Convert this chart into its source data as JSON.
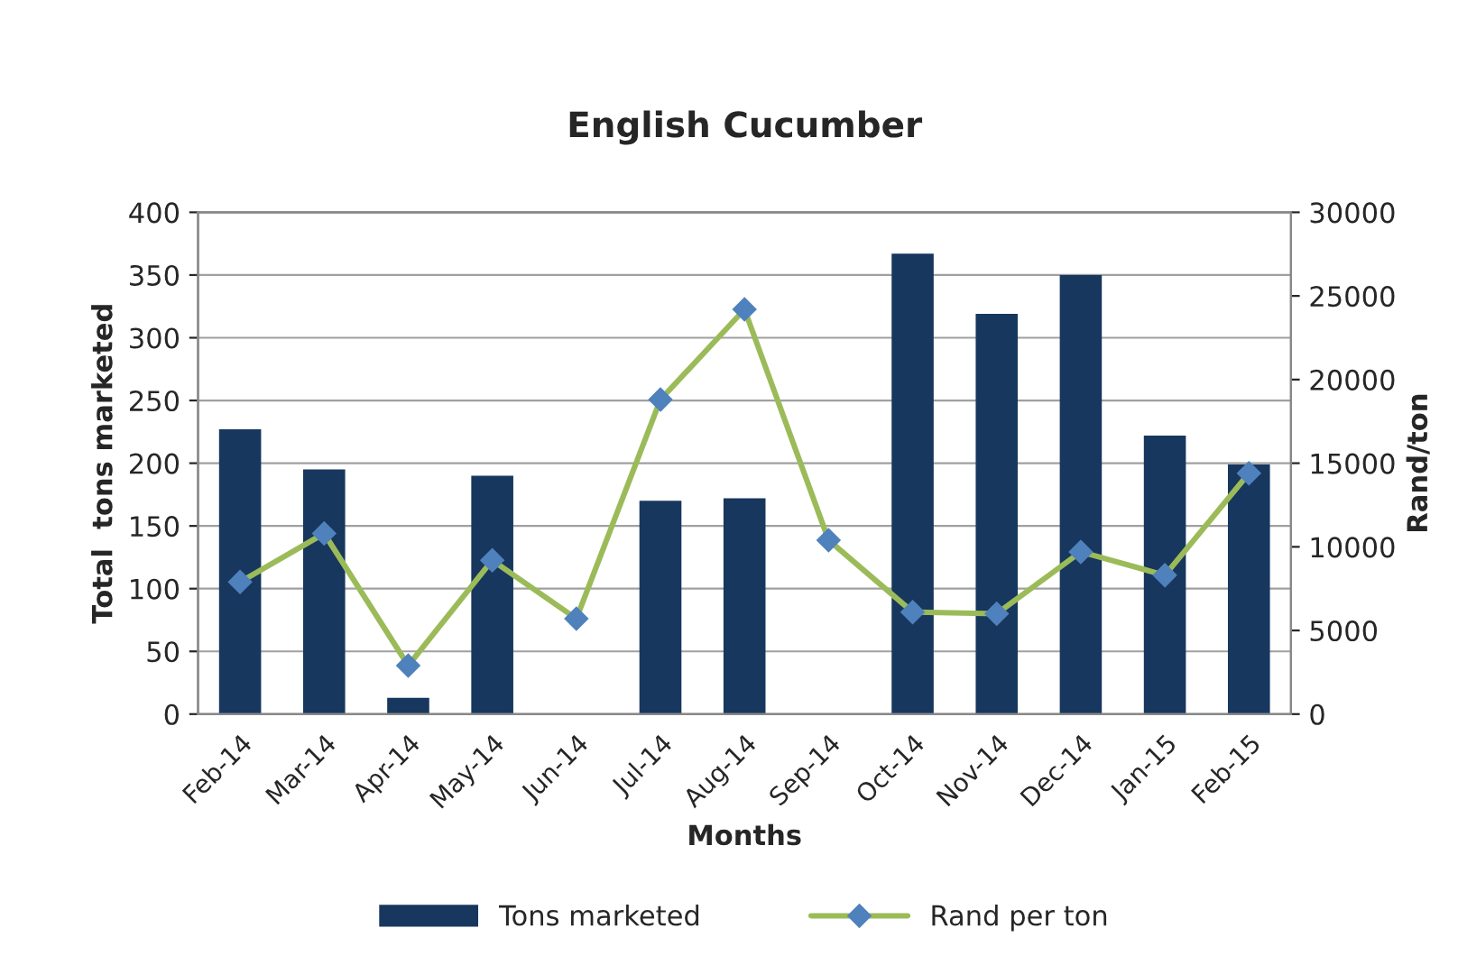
{
  "chart_data": {
    "type": "bar",
    "title": "English Cucumber",
    "xlabel": "Months",
    "ylabel": "Total  tons marketed",
    "y2label": "Rand/ton",
    "categories": [
      "Feb-14",
      "Mar-14",
      "Apr-14",
      "May-14",
      "Jun-14",
      "Jul-14",
      "Aug-14",
      "Sep-14",
      "Oct-14",
      "Nov-14",
      "Dec-14",
      "Jan-15",
      "Feb-15"
    ],
    "series": [
      {
        "name": "Tons marketed",
        "color": "#17375e",
        "values": [
          227,
          195,
          13,
          190,
          null,
          170,
          172,
          null,
          367,
          319,
          350,
          222,
          199
        ]
      },
      {
        "name": "Rand per ton",
        "type": "line",
        "axis": "y2",
        "color": "#9bbb59",
        "marker": "diamond",
        "values": [
          7900,
          10800,
          2900,
          9200,
          5700,
          18800,
          24200,
          10400,
          6100,
          6000,
          9700,
          8300,
          14400
        ]
      }
    ],
    "ylim": [
      0,
      400
    ],
    "yticks": [
      0,
      50,
      100,
      150,
      200,
      250,
      300,
      350,
      400
    ],
    "y2lim": [
      0,
      30000
    ],
    "y2ticks": [
      0,
      5000,
      10000,
      15000,
      20000,
      25000,
      30000
    ],
    "grid": "y",
    "legend": "bottom"
  }
}
